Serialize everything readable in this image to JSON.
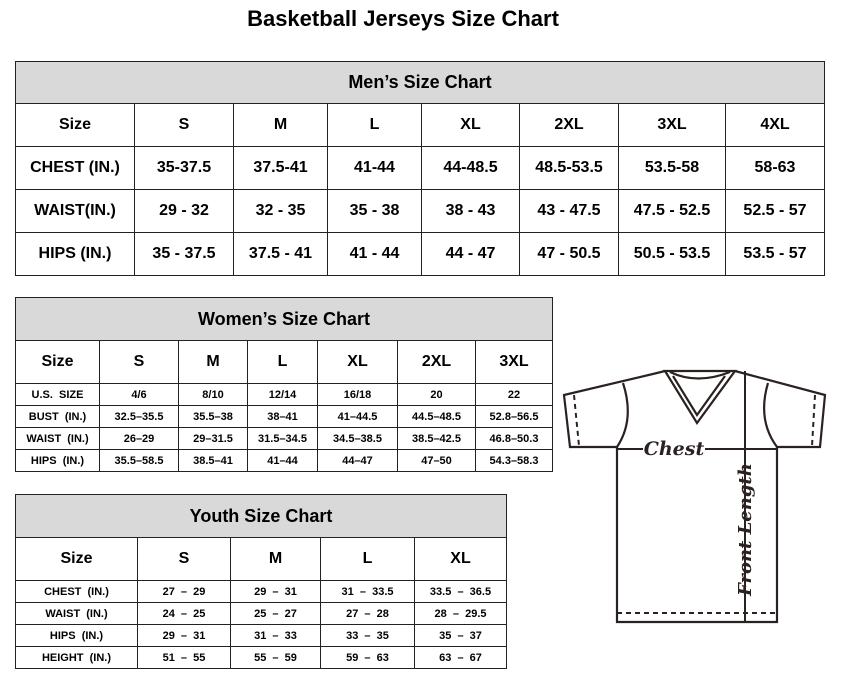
{
  "title": "Basketball Jerseys Size Chart",
  "men": {
    "caption": "Men’s Size Chart",
    "header": [
      "Size",
      "S",
      "M",
      "L",
      "XL",
      "2XL",
      "3XL",
      "4XL"
    ],
    "rows": [
      [
        "CHEST (IN.)",
        "35-37.5",
        "37.5-41",
        "41-44",
        "44-48.5",
        "48.5-53.5",
        "53.5-58",
        "58-63"
      ],
      [
        "WAIST(IN.)",
        "29 - 32",
        "32 - 35",
        "35 - 38",
        "38 - 43",
        "43 - 47.5",
        "47.5 - 52.5",
        "52.5 - 57"
      ],
      [
        "HIPS (IN.)",
        "35 - 37.5",
        "37.5 - 41",
        "41 - 44",
        "44 - 47",
        "47 - 50.5",
        "50.5 - 53.5",
        "53.5 - 57"
      ]
    ]
  },
  "women": {
    "caption": "Women’s Size Chart",
    "header": [
      "Size",
      "S",
      "M",
      "L",
      "XL",
      "2XL",
      "3XL"
    ],
    "rows": [
      [
        "U.S.  SIZE",
        "4/6",
        "8/10",
        "12/14",
        "16/18",
        "20",
        "22"
      ],
      [
        "BUST  (IN.)",
        "32.5–35.5",
        "35.5–38",
        "38–41",
        "41–44.5",
        "44.5–48.5",
        "52.8–56.5"
      ],
      [
        "WAIST  (IN.)",
        "26–29",
        "29–31.5",
        "31.5–34.5",
        "34.5–38.5",
        "38.5–42.5",
        "46.8–50.3"
      ],
      [
        "HIPS  (IN.)",
        "35.5–58.5",
        "38.5–41",
        "41–44",
        "44–47",
        "47–50",
        "54.3–58.3"
      ]
    ]
  },
  "youth": {
    "caption": "Youth Size Chart",
    "header": [
      "Size",
      "S",
      "M",
      "L",
      "XL"
    ],
    "rows": [
      [
        "CHEST  (IN.)",
        "27  –  29",
        "29  –  31",
        "31  –  33.5",
        "33.5  –  36.5"
      ],
      [
        "WAIST  (IN.)",
        "24  –  25",
        "25  –  27",
        "27  –  28",
        "28  –  29.5"
      ],
      [
        "HIPS  (IN.)",
        "29  –  31",
        "31  –  33",
        "33  –  35",
        "35  –  37"
      ],
      [
        "HEIGHT  (IN.)",
        "51  –  55",
        "55  –  59",
        "59  –  63",
        "63  –  67"
      ]
    ]
  },
  "diagram": {
    "chest_label": "Chest",
    "length_label": "Front Length"
  }
}
